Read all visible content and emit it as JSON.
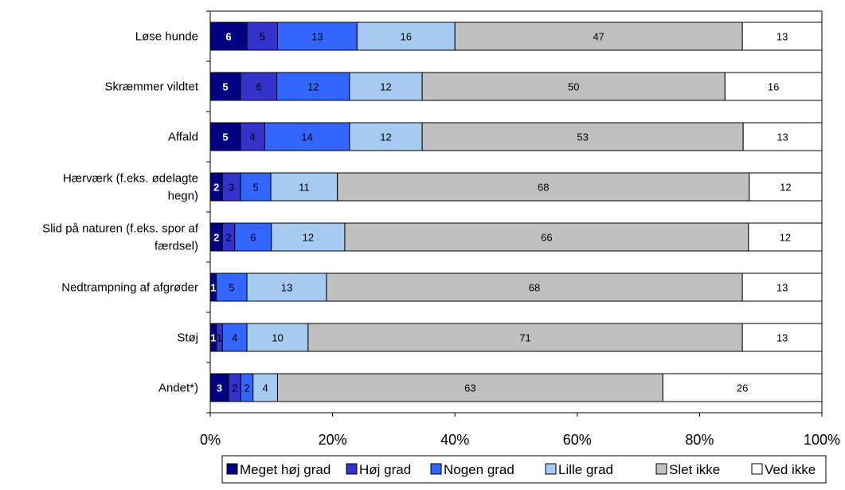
{
  "chart_data": {
    "type": "bar",
    "orientation": "horizontal",
    "stacked": "percent",
    "categories": [
      "Løse hunde",
      "Skræmmer vildtet",
      "Affald",
      "Hærværk (f.eks. ødelagte hegn)",
      "Slid på naturen (f.eks. spor af færdsel)",
      "Nedtrampning af afgrøder",
      "Støj",
      "Andet*)"
    ],
    "category_label_lines": [
      [
        "Løse hunde"
      ],
      [
        "Skræmmer vildtet"
      ],
      [
        "Affald"
      ],
      [
        "Hærværk (f.eks. ødelagte",
        "hegn)"
      ],
      [
        "Slid på naturen (f.eks. spor af",
        "færdsel)"
      ],
      [
        "Nedtrampning af afgrøder"
      ],
      [
        "Støj"
      ],
      [
        "Andet*)"
      ]
    ],
    "series": [
      {
        "name": "Meget høj grad",
        "color": "#000080",
        "label_color": "#ffffff",
        "values": [
          6,
          5,
          5,
          2,
          2,
          1,
          1,
          3
        ]
      },
      {
        "name": "Høj grad",
        "color": "#3333cc",
        "label_color": "#000000",
        "values": [
          5,
          6,
          4,
          3,
          2,
          0,
          1,
          2
        ]
      },
      {
        "name": "Nogen grad",
        "color": "#3366ff",
        "label_color": "#000000",
        "values": [
          13,
          12,
          14,
          5,
          6,
          5,
          4,
          2
        ]
      },
      {
        "name": "Lille grad",
        "color": "#a6caf0",
        "label_color": "#000000",
        "values": [
          16,
          12,
          12,
          11,
          12,
          13,
          10,
          4
        ]
      },
      {
        "name": "Slet ikke",
        "color": "#c0c0c0",
        "label_color": "#000000",
        "values": [
          47,
          50,
          53,
          68,
          66,
          68,
          71,
          63
        ]
      },
      {
        "name": "Ved ikke",
        "color": "#ffffff",
        "label_color": "#000000",
        "values": [
          13,
          16,
          13,
          12,
          12,
          13,
          13,
          26
        ]
      }
    ],
    "x_ticks": [
      "0%",
      "20%",
      "40%",
      "60%",
      "80%",
      "100%"
    ],
    "xlim": [
      0,
      100
    ],
    "grid": false,
    "legend_position": "bottom",
    "title": "",
    "xlabel": "",
    "ylabel": ""
  }
}
